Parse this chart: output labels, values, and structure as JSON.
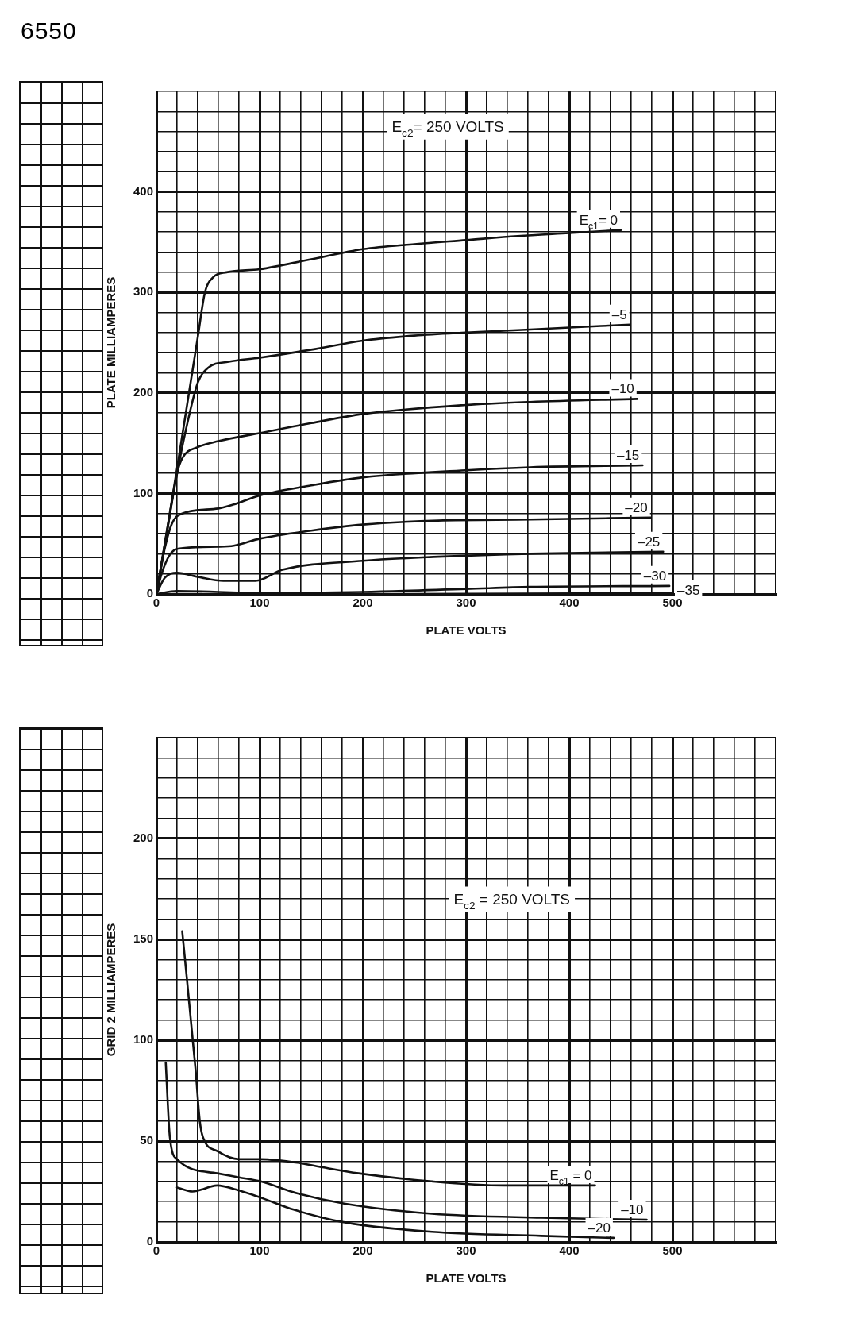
{
  "chart_data": [
    {
      "type": "line",
      "title": "6550",
      "xlabel": "PLATE VOLTS",
      "ylabel": "PLATE MILLIAMPERES",
      "grid": true,
      "legend": false,
      "marker": "none",
      "annotations": [
        "E$_{c2}$= 250 VOLTS"
      ],
      "xlim": [
        0,
        600
      ],
      "ylim": [
        0,
        500
      ],
      "xticks": [
        0,
        {
          "value": 20,
          "label": null
        },
        {
          "value": 40,
          "label": null
        },
        {
          "value": 60,
          "label": null
        },
        {
          "value": 80,
          "label": null
        },
        100,
        {
          "value": 120,
          "label": null
        },
        {
          "value": 140,
          "label": null
        },
        {
          "value": 160,
          "label": null
        },
        {
          "value": 180,
          "label": null
        },
        200,
        {
          "value": 220,
          "label": null
        },
        {
          "value": 240,
          "label": null
        },
        {
          "value": 260,
          "label": null
        },
        {
          "value": 280,
          "label": null
        },
        300,
        {
          "value": 320,
          "label": null
        },
        {
          "value": 340,
          "label": null
        },
        {
          "value": 360,
          "label": null
        },
        {
          "value": 380,
          "label": null
        },
        400,
        {
          "value": 420,
          "label": null
        },
        {
          "value": 440,
          "label": null
        },
        {
          "value": 460,
          "label": null
        },
        {
          "value": 480,
          "label": null
        },
        500,
        {
          "value": 520,
          "label": null
        },
        {
          "value": 540,
          "label": null
        },
        {
          "value": 560,
          "label": null
        },
        {
          "value": 580,
          "label": null
        },
        {
          "value": 600,
          "label": null
        }
      ],
      "yticks": [
        0,
        {
          "value": 20,
          "label": null
        },
        {
          "value": 40,
          "label": null
        },
        {
          "value": 60,
          "label": null
        },
        {
          "value": 80,
          "label": null
        },
        100,
        {
          "value": 120,
          "label": null
        },
        {
          "value": 140,
          "label": null
        },
        {
          "value": 160,
          "label": null
        },
        {
          "value": 180,
          "label": null
        },
        200,
        {
          "value": 220,
          "label": null
        },
        {
          "value": 240,
          "label": null
        },
        {
          "value": 260,
          "label": null
        },
        {
          "value": 280,
          "label": null
        },
        300,
        {
          "value": 320,
          "label": null
        },
        {
          "value": 340,
          "label": null
        },
        {
          "value": 360,
          "label": null
        },
        {
          "value": 380,
          "label": null
        },
        400,
        {
          "value": 420,
          "label": null
        },
        {
          "value": 440,
          "label": null
        },
        {
          "value": 460,
          "label": null
        },
        {
          "value": 480,
          "label": null
        },
        {
          "value": 500,
          "label": null
        }
      ],
      "series": [
        {
          "name": "E$_{c1}$= 0",
          "color": "#111111",
          "x": [
            0,
            10,
            20,
            30,
            40,
            47,
            55,
            68,
            100,
            150,
            200,
            250,
            300,
            350,
            400,
            450
          ],
          "values": [
            0,
            62,
            125,
            190,
            255,
            300,
            315,
            320,
            323,
            333,
            343,
            348,
            352,
            356,
            359,
            362
          ]
        },
        {
          "name": "–5",
          "color": "#111111",
          "x": [
            0,
            20,
            30,
            40,
            50,
            70,
            100,
            150,
            200,
            250,
            300,
            362,
            459
          ],
          "values": [
            0,
            120,
            170,
            210,
            225,
            231,
            235,
            243,
            252,
            257,
            260,
            263,
            268
          ]
        },
        {
          "name": "–10",
          "color": "#111111",
          "x": [
            0,
            10,
            20,
            25,
            40,
            60,
            100,
            150,
            200,
            300,
            362,
            466
          ],
          "values": [
            0,
            60,
            120,
            135,
            146,
            152,
            160,
            170,
            179,
            188,
            191,
            194
          ]
        },
        {
          "name": "–15",
          "color": "#111111",
          "x": [
            0,
            8,
            15,
            25,
            60,
            75,
            100,
            150,
            200,
            300,
            362,
            471
          ],
          "values": [
            0,
            45,
            70,
            80,
            85,
            89,
            98,
            108,
            116,
            123,
            126,
            128
          ]
        },
        {
          "name": "–20",
          "color": "#111111",
          "x": [
            0,
            5,
            13,
            21,
            60,
            75,
            100,
            150,
            200,
            273,
            362,
            479
          ],
          "values": [
            0,
            20,
            39,
            45,
            47,
            48,
            55,
            63,
            69,
            73,
            74,
            76
          ]
        },
        {
          "name": "–25",
          "color": "#111111",
          "x": [
            0,
            8,
            20,
            40,
            65,
            96,
            122,
            200,
            273,
            362,
            491
          ],
          "values": [
            0,
            16,
            21,
            17,
            13,
            13,
            24,
            33,
            37,
            40,
            42
          ]
        },
        {
          "name": "–30",
          "color": "#111111",
          "x": [
            0,
            20,
            100,
            200,
            300,
            362,
            497
          ],
          "values": [
            0,
            3,
            1,
            2,
            5,
            7,
            8
          ]
        },
        {
          "name": "–35",
          "color": "#111111",
          "x": [
            0,
            250,
            500
          ],
          "values": [
            0,
            0,
            1
          ]
        }
      ]
    },
    {
      "type": "line",
      "xlabel": "PLATE VOLTS",
      "ylabel": "GRID 2 MILLIAMPERES",
      "grid": true,
      "legend": false,
      "marker": "none",
      "annotations": [
        "E$_{c2}$ = 250 VOLTS"
      ],
      "xlim": [
        0,
        600
      ],
      "ylim": [
        0,
        250
      ],
      "xticks": [
        0,
        {
          "value": 20,
          "label": null
        },
        {
          "value": 40,
          "label": null
        },
        {
          "value": 60,
          "label": null
        },
        {
          "value": 80,
          "label": null
        },
        100,
        {
          "value": 120,
          "label": null
        },
        {
          "value": 140,
          "label": null
        },
        {
          "value": 160,
          "label": null
        },
        {
          "value": 180,
          "label": null
        },
        200,
        {
          "value": 220,
          "label": null
        },
        {
          "value": 240,
          "label": null
        },
        {
          "value": 260,
          "label": null
        },
        {
          "value": 280,
          "label": null
        },
        300,
        {
          "value": 320,
          "label": null
        },
        {
          "value": 340,
          "label": null
        },
        {
          "value": 360,
          "label": null
        },
        {
          "value": 380,
          "label": null
        },
        400,
        {
          "value": 420,
          "label": null
        },
        {
          "value": 440,
          "label": null
        },
        {
          "value": 460,
          "label": null
        },
        {
          "value": 480,
          "label": null
        },
        500,
        {
          "value": 520,
          "label": null
        },
        {
          "value": 540,
          "label": null
        },
        {
          "value": 560,
          "label": null
        },
        {
          "value": 580,
          "label": null
        },
        {
          "value": 600,
          "label": null
        }
      ],
      "yticks": [
        0,
        {
          "value": 10,
          "label": null
        },
        {
          "value": 20,
          "label": null
        },
        {
          "value": 30,
          "label": null
        },
        {
          "value": 40,
          "label": null
        },
        50,
        {
          "value": 60,
          "label": null
        },
        {
          "value": 70,
          "label": null
        },
        {
          "value": 80,
          "label": null
        },
        {
          "value": 90,
          "label": null
        },
        100,
        {
          "value": 110,
          "label": null
        },
        {
          "value": 120,
          "label": null
        },
        {
          "value": 130,
          "label": null
        },
        {
          "value": 140,
          "label": null
        },
        150,
        {
          "value": 160,
          "label": null
        },
        {
          "value": 170,
          "label": null
        },
        {
          "value": 180,
          "label": null
        },
        {
          "value": 190,
          "label": null
        },
        200,
        {
          "value": 210,
          "label": null
        },
        {
          "value": 220,
          "label": null
        },
        {
          "value": 230,
          "label": null
        },
        {
          "value": 240,
          "label": null
        },
        {
          "value": 250,
          "label": null
        }
      ],
      "series": [
        {
          "name": "E$_{c1}$ = 0",
          "color": "#111111",
          "x": [
            25,
            38,
            42,
            45,
            59,
            80,
            101,
            140,
            161,
            196,
            267,
            337,
            425
          ],
          "values": [
            154,
            85,
            60,
            52,
            45,
            41,
            41,
            39,
            37,
            34,
            30,
            28,
            28
          ]
        },
        {
          "name": "–10",
          "color": "#111111",
          "x": [
            9,
            13,
            20,
            59,
            80,
            101,
            137,
            182,
            267,
            373,
            475
          ],
          "values": [
            89,
            52,
            41,
            34,
            32,
            30,
            24,
            19,
            14,
            12,
            11
          ]
        },
        {
          "name": "–20",
          "color": "#111111",
          "x": [
            20,
            35,
            59,
            77,
            101,
            133,
            179,
            267,
            373,
            443
          ],
          "values": [
            27,
            25,
            28,
            26,
            22,
            16,
            10,
            5,
            3,
            2
          ]
        }
      ]
    }
  ]
}
